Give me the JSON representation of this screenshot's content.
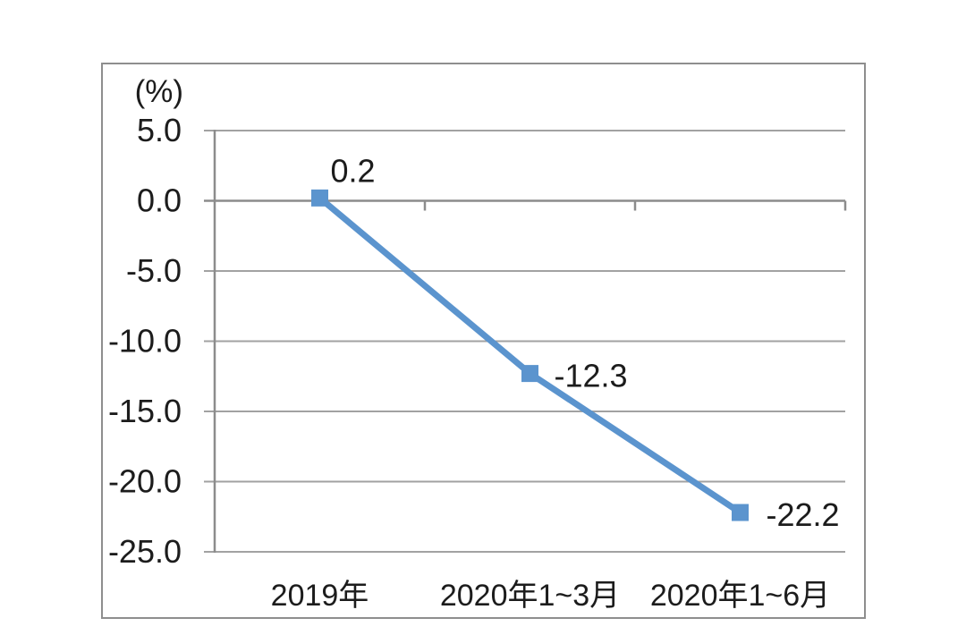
{
  "chart_data": {
    "type": "line",
    "categories": [
      "2019年",
      "2020年1~3月",
      "2020年1~6月"
    ],
    "values": [
      0.2,
      -12.3,
      -22.2
    ],
    "data_labels": [
      "0.2",
      "-12.3",
      "-22.2"
    ],
    "title": "",
    "xlabel": "",
    "ylabel": "(%)",
    "ylim": [
      -25,
      5
    ],
    "ytick_labels": [
      "5.0",
      "0.0",
      "-5.0",
      "-10.0",
      "-15.0",
      "-20.0",
      "-25.0"
    ],
    "grid": true,
    "legend": "none",
    "marker": "square",
    "colors": {
      "series_line": "#5B94CE",
      "gridline": "#a2a2a2",
      "axis": "#8c8c8c",
      "frame_border": "#8e8e8e",
      "text": "#1c1c1c",
      "background": "#ffffff"
    }
  }
}
